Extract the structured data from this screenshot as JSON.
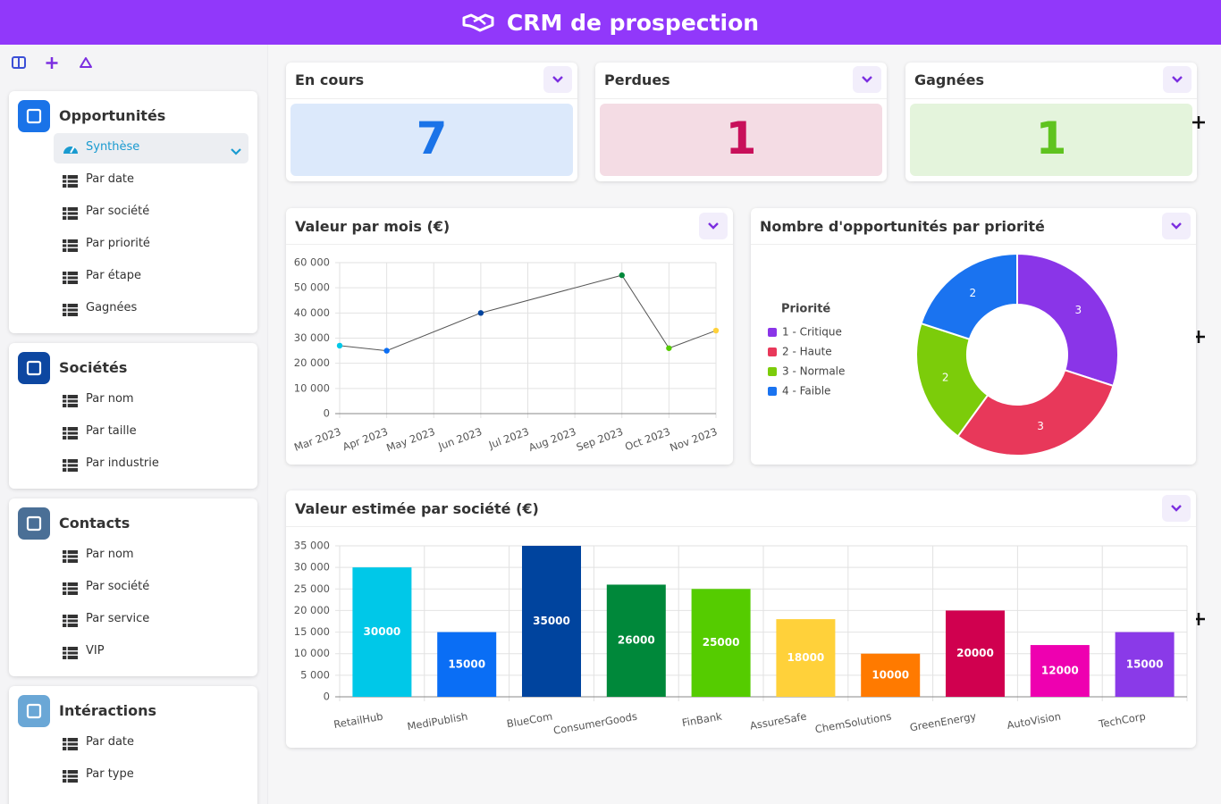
{
  "header": {
    "title": "CRM de prospection"
  },
  "sidebar": {
    "sections": [
      {
        "title": "Opportunités",
        "color": "#1a73e8",
        "items": [
          "Synthèse",
          "Par date",
          "Par société",
          "Par priorité",
          "Par étape",
          "Gagnées"
        ]
      },
      {
        "title": "Sociétés",
        "color": "#0d47a1",
        "items": [
          "Par nom",
          "Par taille",
          "Par industrie"
        ]
      },
      {
        "title": "Contacts",
        "color": "#4a6f96",
        "items": [
          "Par nom",
          "Par société",
          "Par service",
          "VIP"
        ]
      },
      {
        "title": "Intéractions",
        "color": "#6aa7d6",
        "items": [
          "Par date",
          "Par type"
        ]
      }
    ]
  },
  "kpis": [
    {
      "title": "En cours",
      "value": 7,
      "color": "#1a73e8",
      "background": "#dce9fb"
    },
    {
      "title": "Perdues",
      "value": 1,
      "color": "#c8105a",
      "background": "#f4dce4"
    },
    {
      "title": "Gagnées",
      "value": 1,
      "color": "#5fc31f",
      "background": "#e4f4dc"
    }
  ],
  "chart_data": [
    {
      "type": "line",
      "title": "Valeur par mois (€)",
      "categories": [
        "Mar 2023",
        "Apr 2023",
        "May 2023",
        "Jun 2023",
        "Jul 2023",
        "Aug 2023",
        "Sep 2023",
        "Oct 2023",
        "Nov 2023"
      ],
      "x": [
        "Mar 2023",
        "Apr 2023",
        "Jun 2023",
        "Sep 2023",
        "Oct 2023",
        "Nov 2023"
      ],
      "series": [
        {
          "color": "#555555",
          "values": [
            27000,
            25000,
            40000,
            55000,
            26000,
            33000
          ],
          "point_colors": [
            "#00c8e8",
            "#0a6ef5",
            "#00449e",
            "#00883a",
            "#55cc00",
            "#ffd13a"
          ]
        }
      ],
      "ylim": [
        0,
        60000
      ],
      "yticks": [
        0,
        {
          "value": 10000,
          "label": "10 000"
        },
        {
          "value": 20000,
          "label": "20 000"
        },
        {
          "value": 30000,
          "label": "30 000"
        },
        {
          "value": 40000,
          "label": "40 000"
        },
        {
          "value": 50000,
          "label": "50 000"
        },
        {
          "value": 60000,
          "label": "60 000"
        }
      ],
      "grid": true
    },
    {
      "type": "pie",
      "doughnut": true,
      "title": "Nombre d'opportunités par priorité",
      "legend_title": "Priorité",
      "legend": "left",
      "categories": [
        "1 - Critique",
        "2 - Haute",
        "3 - Normale",
        "4 - Faible"
      ],
      "values": [
        3,
        3,
        2,
        2
      ],
      "colors": [
        "#8a35e8",
        "#e8385a",
        "#7ccc0a",
        "#1a73f0"
      ]
    },
    {
      "type": "bar",
      "title": "Valeur estimée par société (€)",
      "categories": [
        "RetailHub",
        "MediPublish",
        "BlueCom",
        "ConsumerGoods",
        "FinBank",
        "AssureSafe",
        "ChemSolutions",
        "GreenEnergy",
        "AutoVision",
        "TechCorp"
      ],
      "values": [
        30000,
        15000,
        35000,
        26000,
        25000,
        18000,
        10000,
        20000,
        12000,
        15000
      ],
      "colors": [
        "#00c8e8",
        "#0a6ef5",
        "#00449e",
        "#00883a",
        "#55cc00",
        "#ffd13a",
        "#ff7a00",
        "#d0004f",
        "#ee00b0",
        "#8a3ae8"
      ],
      "ylim": [
        0,
        35000
      ],
      "yticks": [
        0,
        {
          "value": 5000,
          "label": "5 000"
        },
        {
          "value": 10000,
          "label": "10 000"
        },
        {
          "value": 15000,
          "label": "15 000"
        },
        {
          "value": 20000,
          "label": "20 000"
        },
        {
          "value": 25000,
          "label": "25 000"
        },
        {
          "value": 30000,
          "label": "30 000"
        },
        {
          "value": 35000,
          "label": "35 000"
        }
      ],
      "grid": true,
      "data_labels": true
    }
  ]
}
